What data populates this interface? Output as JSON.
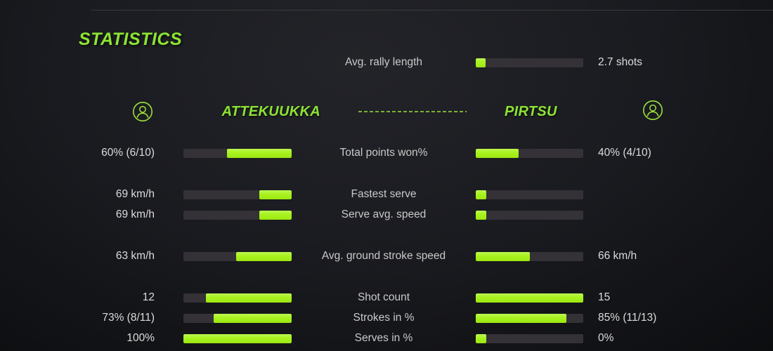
{
  "header": {
    "title": "STATISTICS"
  },
  "summary_row": {
    "label": "Avg. rally length",
    "value": "2.7 shots",
    "fill_pct": 9
  },
  "players": {
    "left": {
      "name": "ATTEKUUKKA"
    },
    "right": {
      "name": "PIRTSU"
    }
  },
  "colors": {
    "accent_bar_green": "#a8f21e",
    "title_green": "#8ce432",
    "track_gray": "#343137",
    "value_text": "#dcdcdc",
    "label_text": "#c9c9c9",
    "topline": "#383a3f"
  },
  "stats": {
    "rows": [
      {
        "label": "Total points won%",
        "left_value": "60% (6/10)",
        "left_fill": 60,
        "right_value": "40% (4/10)",
        "right_fill": 40
      },
      {
        "label": "Fastest serve",
        "left_value": "69 km/h",
        "left_fill": 30,
        "right_value": "",
        "right_fill": 10
      },
      {
        "label": "Serve avg. speed",
        "left_value": "69 km/h",
        "left_fill": 30,
        "right_value": "",
        "right_fill": 10
      },
      {
        "label": "Avg. ground stroke speed",
        "left_value": "63 km/h",
        "left_fill": 51,
        "right_value": "66 km/h",
        "right_fill": 50
      },
      {
        "label": "Shot count",
        "left_value": "12",
        "left_fill": 79,
        "right_value": "15",
        "right_fill": 100
      },
      {
        "label": "Strokes in %",
        "left_value": "73% (8/11)",
        "left_fill": 72,
        "right_value": "85% (11/13)",
        "right_fill": 84
      },
      {
        "label": "Serves in %",
        "left_value": "100%",
        "left_fill": 100,
        "right_value": "0%",
        "right_fill": 10
      }
    ]
  }
}
